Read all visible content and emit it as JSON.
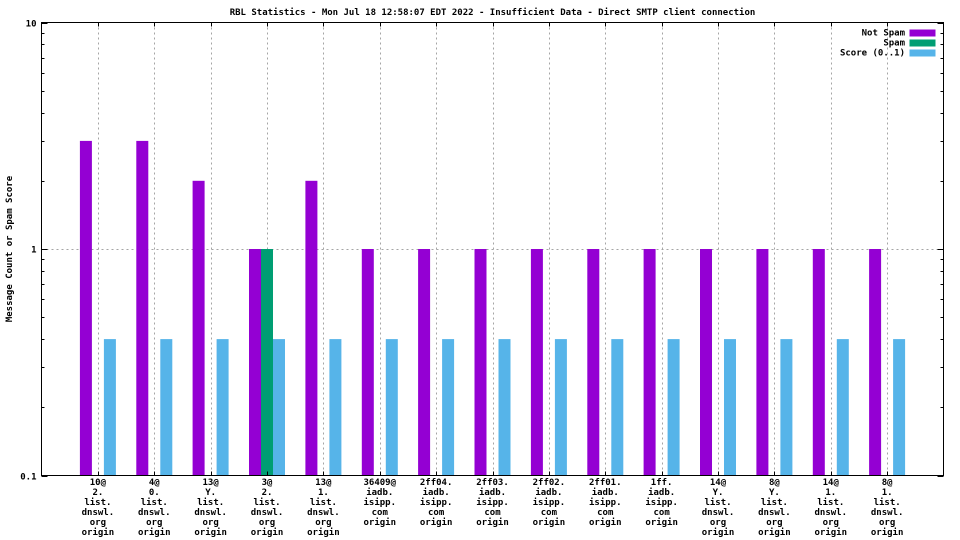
{
  "title": "RBL Statistics - Mon Jul 18 12:58:07 EDT 2022 - Insufficient Data - Direct SMTP client connection",
  "colors": {
    "not_spam": "#9400D3",
    "spam": "#009E73",
    "score": "#56B4E9",
    "grid": "#a5a5a5",
    "axis": "#000000",
    "background": "#ffffff"
  },
  "chart_data": {
    "type": "bar",
    "title": "RBL Statistics - Mon Jul 18 12:58:07 EDT 2022 - Insufficient Data - Direct SMTP client connection",
    "xlabel": "",
    "ylabel": "Message Count or Spam Score",
    "yscale": "log",
    "ylim": [
      0.1,
      10
    ],
    "ytick_labels": [
      "10",
      "1",
      "0.1"
    ],
    "ytick_values": [
      10,
      1,
      0.1
    ],
    "grid": {
      "horizontal_at": [
        1
      ],
      "vertical_at_group_centers": true,
      "style": "dashed"
    },
    "legend_position": "top-right",
    "legend": [
      {
        "label": "Not Spam",
        "color": "#9400D3"
      },
      {
        "label": "Spam",
        "color": "#009E73"
      },
      {
        "label": "Score (0..1)",
        "color": "#56B4E9"
      }
    ],
    "categories": [
      [
        "10@",
        "2.",
        "list.",
        "dnswl.",
        "org",
        "origin"
      ],
      [
        "4@",
        "0.",
        "list.",
        "dnswl.",
        "org",
        "origin"
      ],
      [
        "13@",
        "Y.",
        "list.",
        "dnswl.",
        "org",
        "origin"
      ],
      [
        "3@",
        "2.",
        "list.",
        "dnswl.",
        "org",
        "origin"
      ],
      [
        "13@",
        "1.",
        "list.",
        "dnswl.",
        "org",
        "origin"
      ],
      [
        "36409@",
        "iadb.",
        "isipp.",
        "com",
        "origin"
      ],
      [
        "2ff04.",
        "iadb.",
        "isipp.",
        "com",
        "origin"
      ],
      [
        "2ff03.",
        "iadb.",
        "isipp.",
        "com",
        "origin"
      ],
      [
        "2ff02.",
        "iadb.",
        "isipp.",
        "com",
        "origin"
      ],
      [
        "2ff01.",
        "iadb.",
        "isipp.",
        "com",
        "origin"
      ],
      [
        "1ff.",
        "iadb.",
        "isipp.",
        "com",
        "origin"
      ],
      [
        "14@",
        "Y.",
        "list.",
        "dnswl.",
        "org",
        "origin"
      ],
      [
        "8@",
        "Y.",
        "list.",
        "dnswl.",
        "org",
        "origin"
      ],
      [
        "14@",
        "1.",
        "list.",
        "dnswl.",
        "org",
        "origin"
      ],
      [
        "8@",
        "1.",
        "list.",
        "dnswl.",
        "org",
        "origin"
      ]
    ],
    "series": [
      {
        "name": "Not Spam",
        "color": "#9400D3",
        "values": [
          3,
          3,
          2,
          1,
          2,
          1,
          1,
          1,
          1,
          1,
          1,
          1,
          1,
          1,
          1
        ]
      },
      {
        "name": "Spam",
        "color": "#009E73",
        "values": [
          0,
          0,
          0,
          1,
          0,
          0,
          0,
          0,
          0,
          0,
          0,
          0,
          0,
          0,
          0
        ]
      },
      {
        "name": "Score (0..1)",
        "color": "#56B4E9",
        "values": [
          0.4,
          0.4,
          0.4,
          0.4,
          0.4,
          0.4,
          0.4,
          0.4,
          0.4,
          0.4,
          0.4,
          0.4,
          0.4,
          0.4,
          0.4
        ]
      }
    ]
  }
}
